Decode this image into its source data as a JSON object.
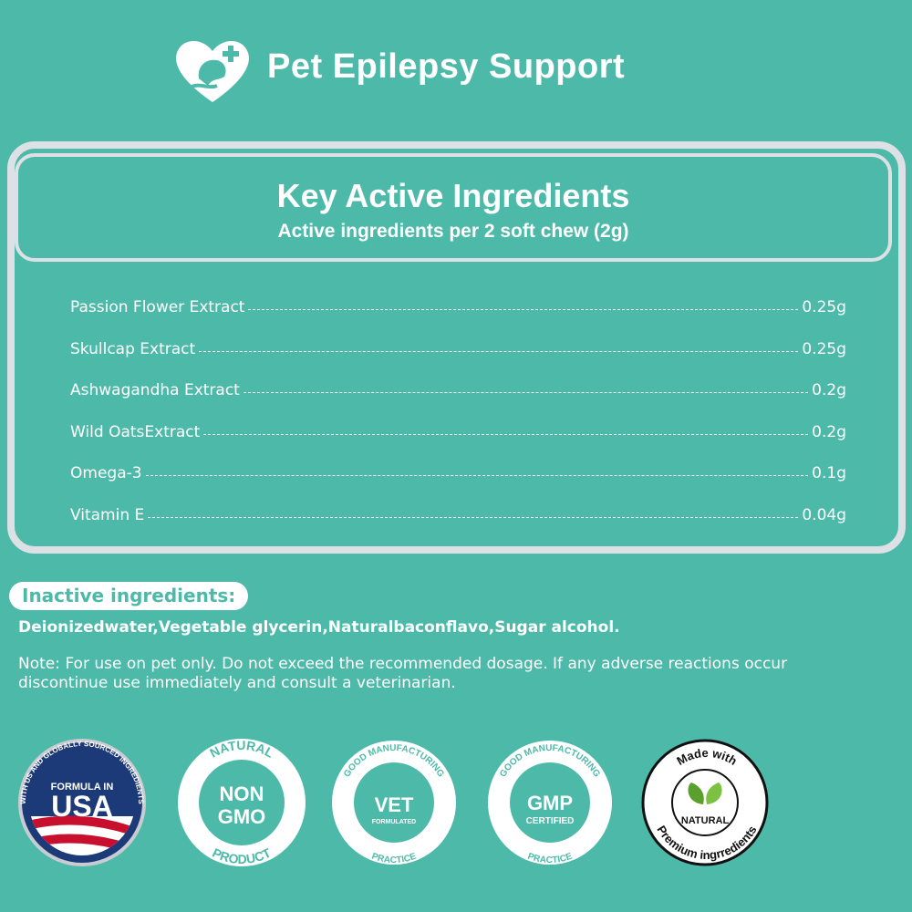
{
  "header": {
    "title": "Pet Epilepsy Support"
  },
  "panel": {
    "title": "Key Active Ingredients",
    "subtitle": "Active ingredients per 2 soft chew (2g)",
    "ingredients": [
      {
        "name": "Passion Flower Extract",
        "amount": "0.25g"
      },
      {
        "name": "Skullcap Extract",
        "amount": "0.25g"
      },
      {
        "name": "Ashwagandha Extract",
        "amount": "0.2g"
      },
      {
        "name": "Wild OatsExtract",
        "amount": "0.2g"
      },
      {
        "name": "Omega-3",
        "amount": "0.1g"
      },
      {
        "name": "Vitamin E",
        "amount": "0.04g"
      }
    ]
  },
  "inactive": {
    "label": "Inactive ingredients:",
    "text": "Deionizedwater,Vegetable glycerin,Naturalbaconflavo,Sugar alcohol."
  },
  "note": "Note: For use on pet only. Do not exceed the recommended dosage. If any adverse reactions occur discontinue use immediately and consult a veterinarian.",
  "badges": [
    {
      "ring": "WITH US AND GLOBALLY SOURCED INGREDIENTS",
      "line1": "FORMULA IN",
      "line2": "USA"
    },
    {
      "top": "NATURAL",
      "line1": "NON",
      "line2": "GMO",
      "bottom": "PRODUCT"
    },
    {
      "top": "GOOD MANUFACTURING",
      "line1": "VET",
      "line2": "FORMULATED",
      "bottom": "PRACTICE"
    },
    {
      "top": "GOOD MANUFACTURING",
      "line1": "GMP",
      "line2": "CERTIFIED",
      "bottom": "PRACTICE"
    },
    {
      "top": "Made with",
      "line1": "NATURAL",
      "bottom": "Premium ingrredients"
    }
  ]
}
